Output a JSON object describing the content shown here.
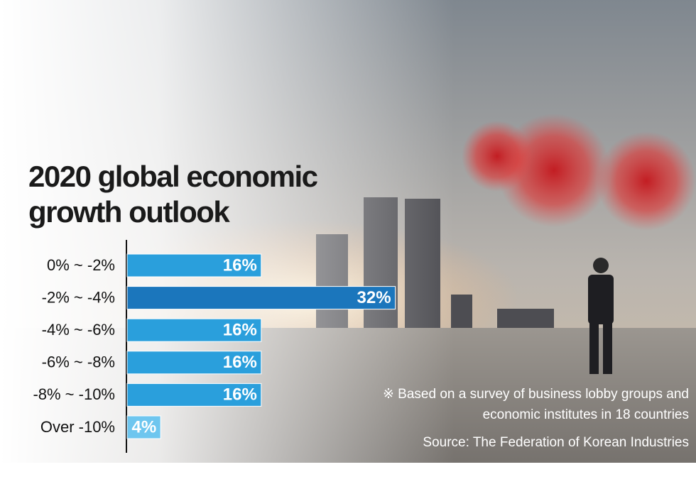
{
  "chart_data": {
    "type": "bar",
    "orientation": "horizontal",
    "title": [
      "2020 global economic",
      "growth outlook"
    ],
    "categories": [
      "0% ~ -2%",
      "-2% ~ -4%",
      "-4% ~ -6%",
      "-6% ~ -8%",
      "-8% ~ -10%",
      "Over -10%"
    ],
    "values": [
      16,
      32,
      16,
      16,
      16,
      4
    ],
    "value_labels": [
      "16%",
      "32%",
      "16%",
      "16%",
      "16%",
      "4%"
    ],
    "colors": [
      "#2a9fdc",
      "#1b76bc",
      "#2a9fdc",
      "#2a9fdc",
      "#2a9fdc",
      "#6ec6ef"
    ],
    "notes": [
      "※ Based on a survey of business lobby groups and",
      "economic institutes in 18 countries"
    ],
    "source": "Source: The Federation of Korean Industries"
  }
}
